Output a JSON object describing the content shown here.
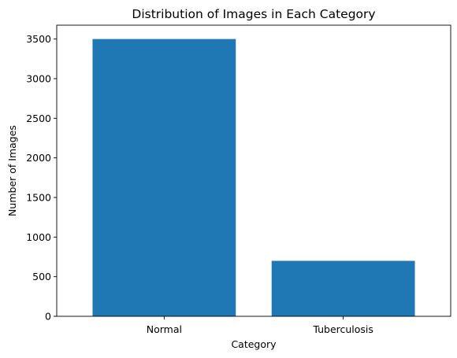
{
  "chart_data": {
    "type": "bar",
    "title": "Distribution of Images in Each Category",
    "xlabel": "Category",
    "ylabel": "Number of Images",
    "categories": [
      "Normal",
      "Tuberculosis"
    ],
    "values": [
      3500,
      700
    ],
    "ylim": [
      0,
      3675
    ],
    "yticks": [
      0,
      500,
      1000,
      1500,
      2000,
      2500,
      3000,
      3500
    ],
    "bar_color": "#1f77b4",
    "grid": false,
    "legend": "none"
  }
}
